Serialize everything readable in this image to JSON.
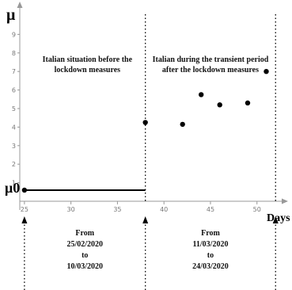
{
  "chart_data": {
    "type": "scatter",
    "title": "",
    "xlabel": "Days",
    "ylabel": "μ",
    "xlim": [
      24.5,
      53
    ],
    "ylim": [
      0,
      10
    ],
    "x_ticks": [
      25,
      30,
      35,
      40,
      45,
      50
    ],
    "y_ticks": [
      1,
      2,
      3,
      4,
      5,
      6,
      7,
      8,
      9
    ],
    "grid": false,
    "y_marker_label": "μ0",
    "baseline": {
      "y": 0.6,
      "x_start": 25,
      "x_end": 38
    },
    "points": [
      {
        "x": 25,
        "y": 0.6
      },
      {
        "x": 38,
        "y": 4.25
      },
      {
        "x": 42,
        "y": 4.15
      },
      {
        "x": 44,
        "y": 5.75
      },
      {
        "x": 46,
        "y": 5.2
      },
      {
        "x": 49,
        "y": 5.3
      },
      {
        "x": 51,
        "y": 7.0
      }
    ],
    "dividers": [
      38,
      52
    ],
    "arrow_days": [
      25,
      38,
      52
    ],
    "regions": [
      {
        "lines": [
          "Italian situation before the",
          "lockdown measures"
        ]
      },
      {
        "lines": [
          "Italian during the transient period",
          "after the lockdown measures"
        ]
      }
    ],
    "date_ranges": [
      {
        "lines": [
          "From",
          "25/02/2020",
          "to",
          "10/03/2020"
        ]
      },
      {
        "lines": [
          "From",
          "11/03/2020",
          "to",
          "24/03/2020"
        ]
      }
    ]
  },
  "colors": {
    "axis": "#999999",
    "points": "#000000",
    "text": "#111111"
  }
}
